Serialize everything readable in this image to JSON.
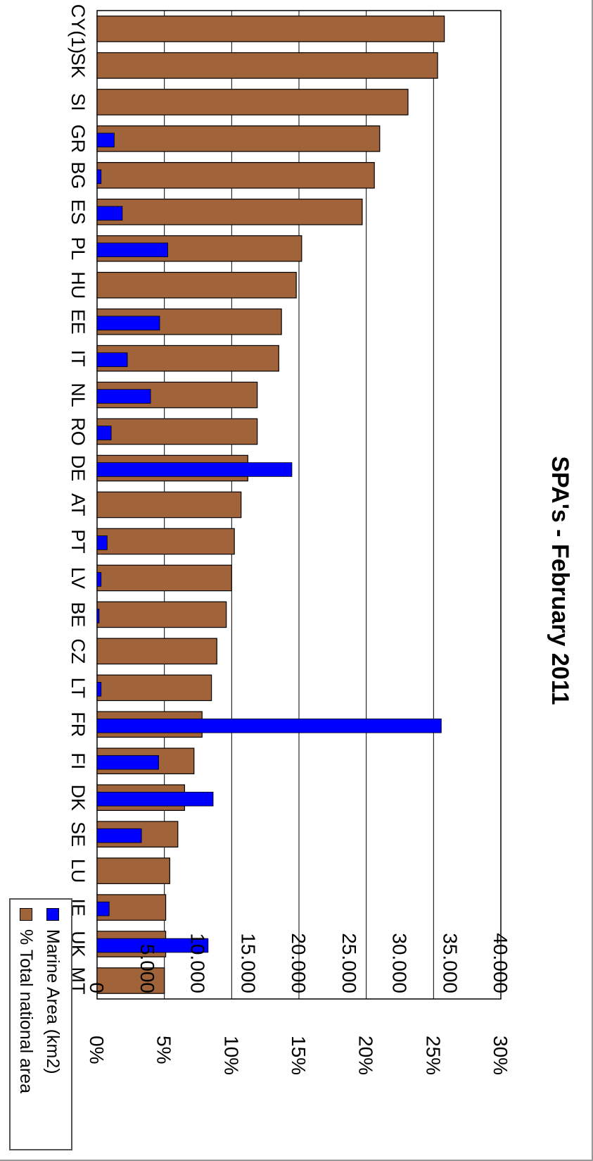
{
  "chart_data": {
    "type": "bar",
    "title": "SPA's - February 2011",
    "categories": [
      "MT",
      "UK",
      "IE",
      "LU",
      "SE",
      "DK",
      "FI",
      "FR",
      "LT",
      "CZ",
      "BE",
      "LV",
      "PT",
      "AT",
      "DE",
      "RO",
      "NL",
      "IT",
      "EE",
      "HU",
      "PL",
      "ES",
      "BG",
      "GR",
      "SI",
      "SK",
      "CY(1)"
    ],
    "series": [
      {
        "name": "% Total national area",
        "axis": "left",
        "color": "#A0633A",
        "values": [
          5.0,
          5.1,
          5.1,
          5.4,
          6.0,
          6.5,
          7.2,
          7.8,
          8.5,
          8.9,
          9.6,
          10.0,
          10.2,
          10.7,
          11.2,
          11.9,
          11.9,
          13.5,
          13.7,
          14.8,
          15.2,
          19.7,
          20.6,
          21.0,
          23.1,
          25.3,
          25.8
        ]
      },
      {
        "name": "Marine Area (km2)",
        "axis": "right",
        "color": "#0000FF",
        "values": [
          0,
          11000,
          1200,
          0,
          4400,
          11500,
          6100,
          34100,
          400,
          0,
          200,
          400,
          1000,
          0,
          19300,
          1400,
          5300,
          3000,
          6200,
          0,
          7000,
          2500,
          400,
          1700,
          0,
          0,
          0
        ]
      }
    ],
    "y_left": {
      "ylim": [
        0,
        30
      ],
      "ticks": [
        "0%",
        "5%",
        "10%",
        "15%",
        "20%",
        "25%",
        "30%"
      ]
    },
    "y_right": {
      "ylim": [
        0,
        40000
      ],
      "ticks": [
        "0",
        "5.000",
        "10.000",
        "15.000",
        "20.000",
        "25.000",
        "30.000",
        "35.000",
        "40.000"
      ]
    },
    "grid": true,
    "legend_position": "top-right"
  },
  "colors": {
    "pct_bar": "#A0633A",
    "marine_bar": "#0000FF",
    "grid": "#000000"
  }
}
